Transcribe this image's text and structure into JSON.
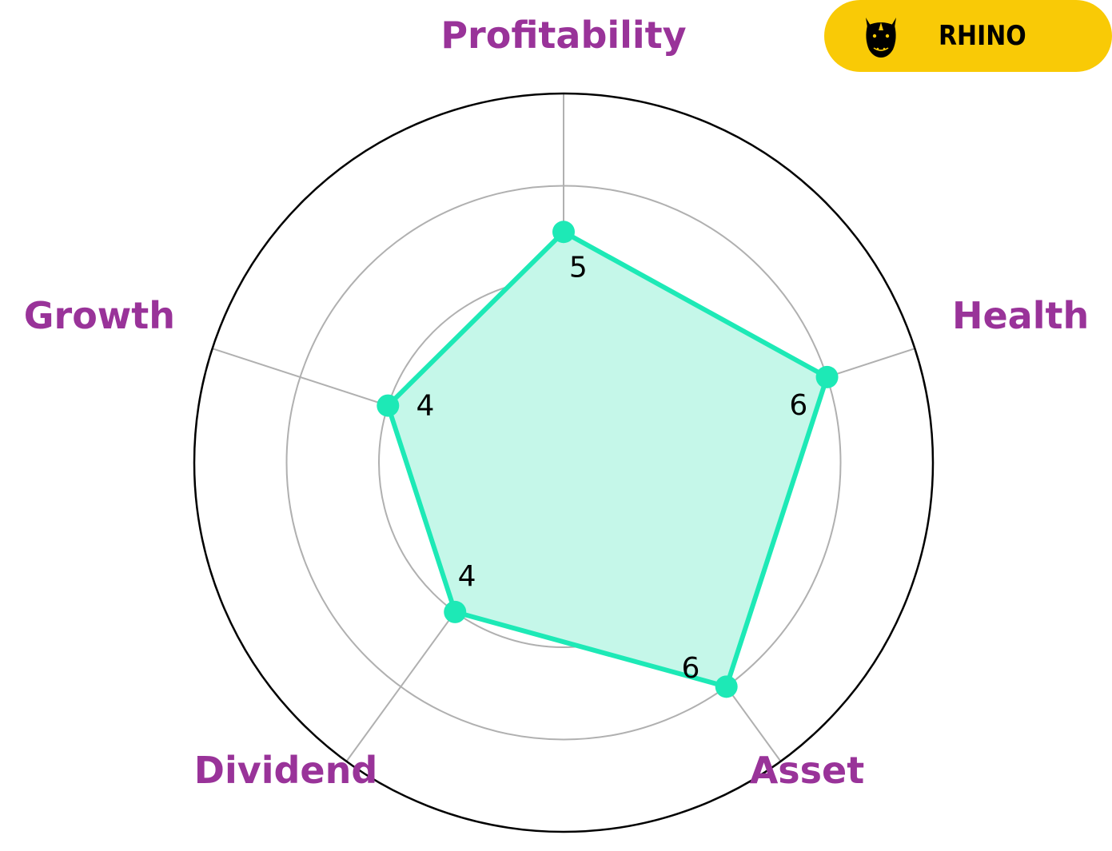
{
  "chart_data": {
    "type": "radar",
    "axes": [
      "Profitability",
      "Health",
      "Asset",
      "Dividend",
      "Growth"
    ],
    "values": [
      5,
      6,
      6,
      4,
      4
    ],
    "value_labels": [
      "5",
      "6",
      "6",
      "4",
      "4"
    ],
    "r_range": [
      0,
      8
    ],
    "grid_rings": [
      2,
      4,
      6
    ],
    "grid": true
  },
  "brand": {
    "name": "RHINO",
    "icon": "rhino-icon"
  },
  "colors": {
    "series": "#1de9b6",
    "fill": "#c5f7e9",
    "axis_label": "#993399",
    "grid": "#b0b0b0",
    "outer_ring": "#000000",
    "brand_bg": "#f9ca06"
  }
}
